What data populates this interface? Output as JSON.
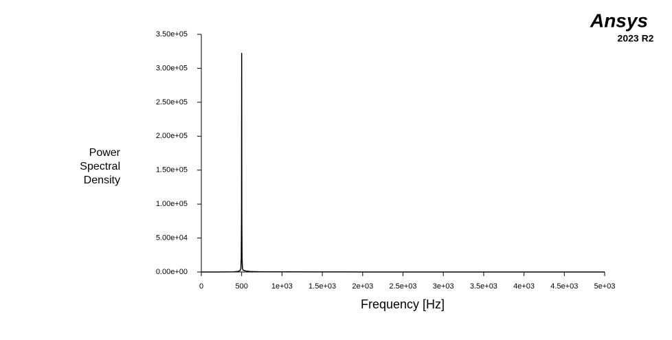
{
  "chart_data": {
    "type": "line",
    "xlabel": "Frequency [Hz]",
    "ylabel": [
      "Power",
      "Spectral",
      "Density"
    ],
    "logo": {
      "name": "Ansys",
      "version": "2023 R2"
    },
    "x": [
      0,
      100,
      200,
      300,
      400,
      450,
      480,
      490,
      495,
      498,
      500,
      502,
      505,
      510,
      520,
      550,
      600,
      700,
      800,
      1000,
      1500,
      2000,
      3000,
      4000,
      5000
    ],
    "series": [
      {
        "color": "#000000",
        "values": [
          0,
          0,
          0,
          100,
          300,
          800,
          2000,
          5000,
          20000,
          80000,
          322000,
          80000,
          20000,
          5000,
          2500,
          1500,
          800,
          400,
          300,
          200,
          100,
          50,
          0,
          0,
          0
        ]
      }
    ],
    "xlim": [
      0,
      5000
    ],
    "xticks": [
      0,
      500,
      {
        "value": 1000,
        "label": "1e+03"
      },
      {
        "value": 1500,
        "label": "1.5e+03"
      },
      {
        "value": 2000,
        "label": "2e+03"
      },
      {
        "value": 2500,
        "label": "2.5e+03"
      },
      {
        "value": 3000,
        "label": "3e+03"
      },
      {
        "value": 3500,
        "label": "3.5e+03"
      },
      {
        "value": 4000,
        "label": "4e+03"
      },
      {
        "value": 4500,
        "label": "4.5e+03"
      },
      {
        "value": 5000,
        "label": "5e+03"
      }
    ],
    "ylim": [
      0,
      350000
    ],
    "yticks": [
      {
        "value": 0,
        "label": "0.00e+00"
      },
      {
        "value": 50000,
        "label": "5.00e+04"
      },
      {
        "value": 100000,
        "label": "1.00e+05"
      },
      {
        "value": 150000,
        "label": "1.50e+05"
      },
      {
        "value": 200000,
        "label": "2.00e+05"
      },
      {
        "value": 250000,
        "label": "2.50e+05"
      },
      {
        "value": 300000,
        "label": "3.00e+05"
      },
      {
        "value": 350000,
        "label": "3.50e+05"
      }
    ]
  }
}
